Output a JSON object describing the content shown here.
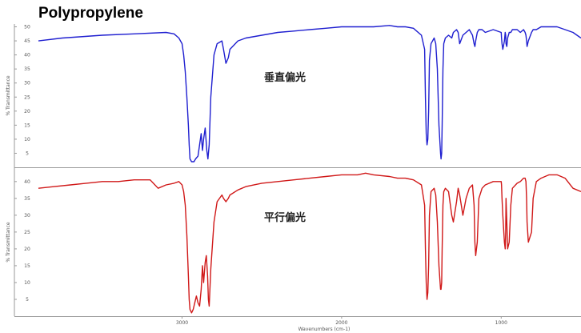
{
  "title": "Polypropylene",
  "chart_data": [
    {
      "type": "line",
      "annotation": "垂直偏光",
      "ylabel": "% Transmittance",
      "xlabel": "",
      "ylim": [
        0,
        51
      ],
      "xlim": [
        3900,
        500
      ],
      "y_ticks": [
        "5",
        "10",
        "15",
        "20",
        "25",
        "30",
        "35",
        "40",
        "45",
        "50"
      ],
      "color": "#1f1fd0",
      "series": [
        {
          "x": [
            3900,
            3750,
            3500,
            3300,
            3100,
            3050,
            3020,
            3000,
            2990,
            2980,
            2970,
            2960,
            2955,
            2950,
            2940,
            2925,
            2915,
            2900,
            2890,
            2880,
            2872,
            2865,
            2855,
            2845,
            2838,
            2830,
            2820,
            2800,
            2780,
            2750,
            2740,
            2725,
            2710,
            2700,
            2650,
            2600,
            2500,
            2400,
            2300,
            2200,
            2100,
            2000,
            1900,
            1800,
            1700,
            1650,
            1600,
            1550,
            1500,
            1480,
            1475,
            1470,
            1465,
            1460,
            1455,
            1450,
            1440,
            1420,
            1410,
            1400,
            1390,
            1380,
            1377,
            1373,
            1370,
            1365,
            1360,
            1350,
            1330,
            1310,
            1300,
            1280,
            1270,
            1260,
            1240,
            1220,
            1200,
            1180,
            1170,
            1165,
            1160,
            1150,
            1140,
            1120,
            1100,
            1050,
            1000,
            998,
            995,
            990,
            980,
            975,
            972,
            970,
            965,
            960,
            950,
            940,
            930,
            900,
            880,
            860,
            850,
            845,
            841,
            838,
            830,
            810,
            800,
            780,
            750,
            700,
            650,
            600,
            550,
            500
          ],
          "y": [
            45,
            46,
            47,
            47.5,
            48,
            47.5,
            46,
            44,
            40,
            34,
            25,
            15,
            8,
            3,
            2,
            2,
            3,
            4,
            8,
            12,
            6,
            10,
            14,
            6,
            3,
            8,
            25,
            40,
            44,
            45,
            42,
            37,
            39,
            42,
            45,
            46,
            47,
            48,
            48.5,
            49,
            49.5,
            50,
            50,
            50,
            50.5,
            50,
            50,
            49.5,
            47,
            42,
            25,
            12,
            8,
            10,
            20,
            38,
            44,
            46,
            44,
            35,
            15,
            5,
            3,
            5,
            15,
            35,
            44,
            46,
            47,
            46,
            48,
            49,
            48,
            44,
            47,
            48,
            49,
            47,
            44,
            43,
            45,
            48,
            49,
            49,
            48,
            49,
            48,
            46,
            44,
            42,
            45,
            48,
            47,
            44,
            43,
            46,
            48,
            48,
            49,
            49,
            48,
            49,
            48,
            47,
            45,
            43,
            45,
            48,
            49,
            49,
            50,
            50,
            50,
            49,
            48,
            46
          ]
        }
      ]
    },
    {
      "type": "line",
      "annotation": "平行偏光",
      "ylabel": "% Transmittance",
      "xlabel": "Wavenumbers (cm-1)",
      "ylim": [
        0,
        44
      ],
      "xlim": [
        3900,
        500
      ],
      "y_ticks": [
        "5",
        "10",
        "15",
        "20",
        "25",
        "30",
        "35",
        "40"
      ],
      "x_ticks": [
        {
          "value": 3000,
          "label": "3000"
        },
        {
          "value": 2000,
          "label": "2000"
        },
        {
          "value": 1000,
          "label": "1000"
        }
      ],
      "color": "#d01818",
      "series": [
        {
          "x": [
            3900,
            3800,
            3700,
            3600,
            3500,
            3400,
            3300,
            3200,
            3180,
            3150,
            3100,
            3050,
            3020,
            3000,
            2990,
            2980,
            2970,
            2960,
            2955,
            2950,
            2940,
            2930,
            2920,
            2910,
            2900,
            2890,
            2880,
            2872,
            2865,
            2855,
            2848,
            2840,
            2835,
            2830,
            2820,
            2800,
            2780,
            2750,
            2740,
            2725,
            2710,
            2700,
            2650,
            2600,
            2500,
            2400,
            2300,
            2200,
            2100,
            2000,
            1900,
            1850,
            1800,
            1700,
            1650,
            1600,
            1550,
            1500,
            1480,
            1475,
            1470,
            1465,
            1460,
            1455,
            1450,
            1440,
            1420,
            1410,
            1400,
            1390,
            1380,
            1377,
            1373,
            1370,
            1365,
            1360,
            1350,
            1330,
            1310,
            1300,
            1280,
            1270,
            1260,
            1240,
            1220,
            1200,
            1180,
            1170,
            1165,
            1160,
            1150,
            1140,
            1120,
            1100,
            1050,
            1000,
            998,
            995,
            990,
            980,
            975,
            972,
            970,
            965,
            960,
            950,
            940,
            930,
            900,
            880,
            860,
            850,
            845,
            841,
            838,
            830,
            810,
            800,
            780,
            750,
            700,
            650,
            600,
            550,
            500
          ],
          "y": [
            38,
            38.5,
            39,
            39.5,
            40,
            40,
            40.5,
            40.5,
            39.5,
            38,
            39,
            39.5,
            40,
            39,
            37,
            33,
            24,
            12,
            5,
            2,
            1,
            2,
            4,
            6,
            4,
            3,
            8,
            15,
            10,
            16,
            18,
            12,
            5,
            3,
            14,
            28,
            34,
            36,
            35,
            34,
            35,
            36,
            37.5,
            38.5,
            39.5,
            40,
            40.5,
            41,
            41.5,
            42,
            42,
            42.5,
            42,
            41.5,
            41,
            41,
            40.5,
            39,
            33,
            20,
            10,
            5,
            7,
            15,
            30,
            37,
            38,
            36,
            28,
            15,
            8,
            8,
            10,
            20,
            33,
            37,
            38,
            37,
            30,
            28,
            34,
            38,
            36,
            30,
            35,
            38,
            39,
            33,
            22,
            18,
            22,
            35,
            38,
            39,
            40,
            40,
            39,
            35,
            30,
            22,
            20,
            25,
            35,
            28,
            20,
            22,
            33,
            38,
            39.5,
            40,
            41,
            41,
            40,
            35,
            28,
            22,
            25,
            35,
            40,
            41,
            42,
            42,
            41,
            38,
            37
          ]
        }
      ]
    }
  ]
}
